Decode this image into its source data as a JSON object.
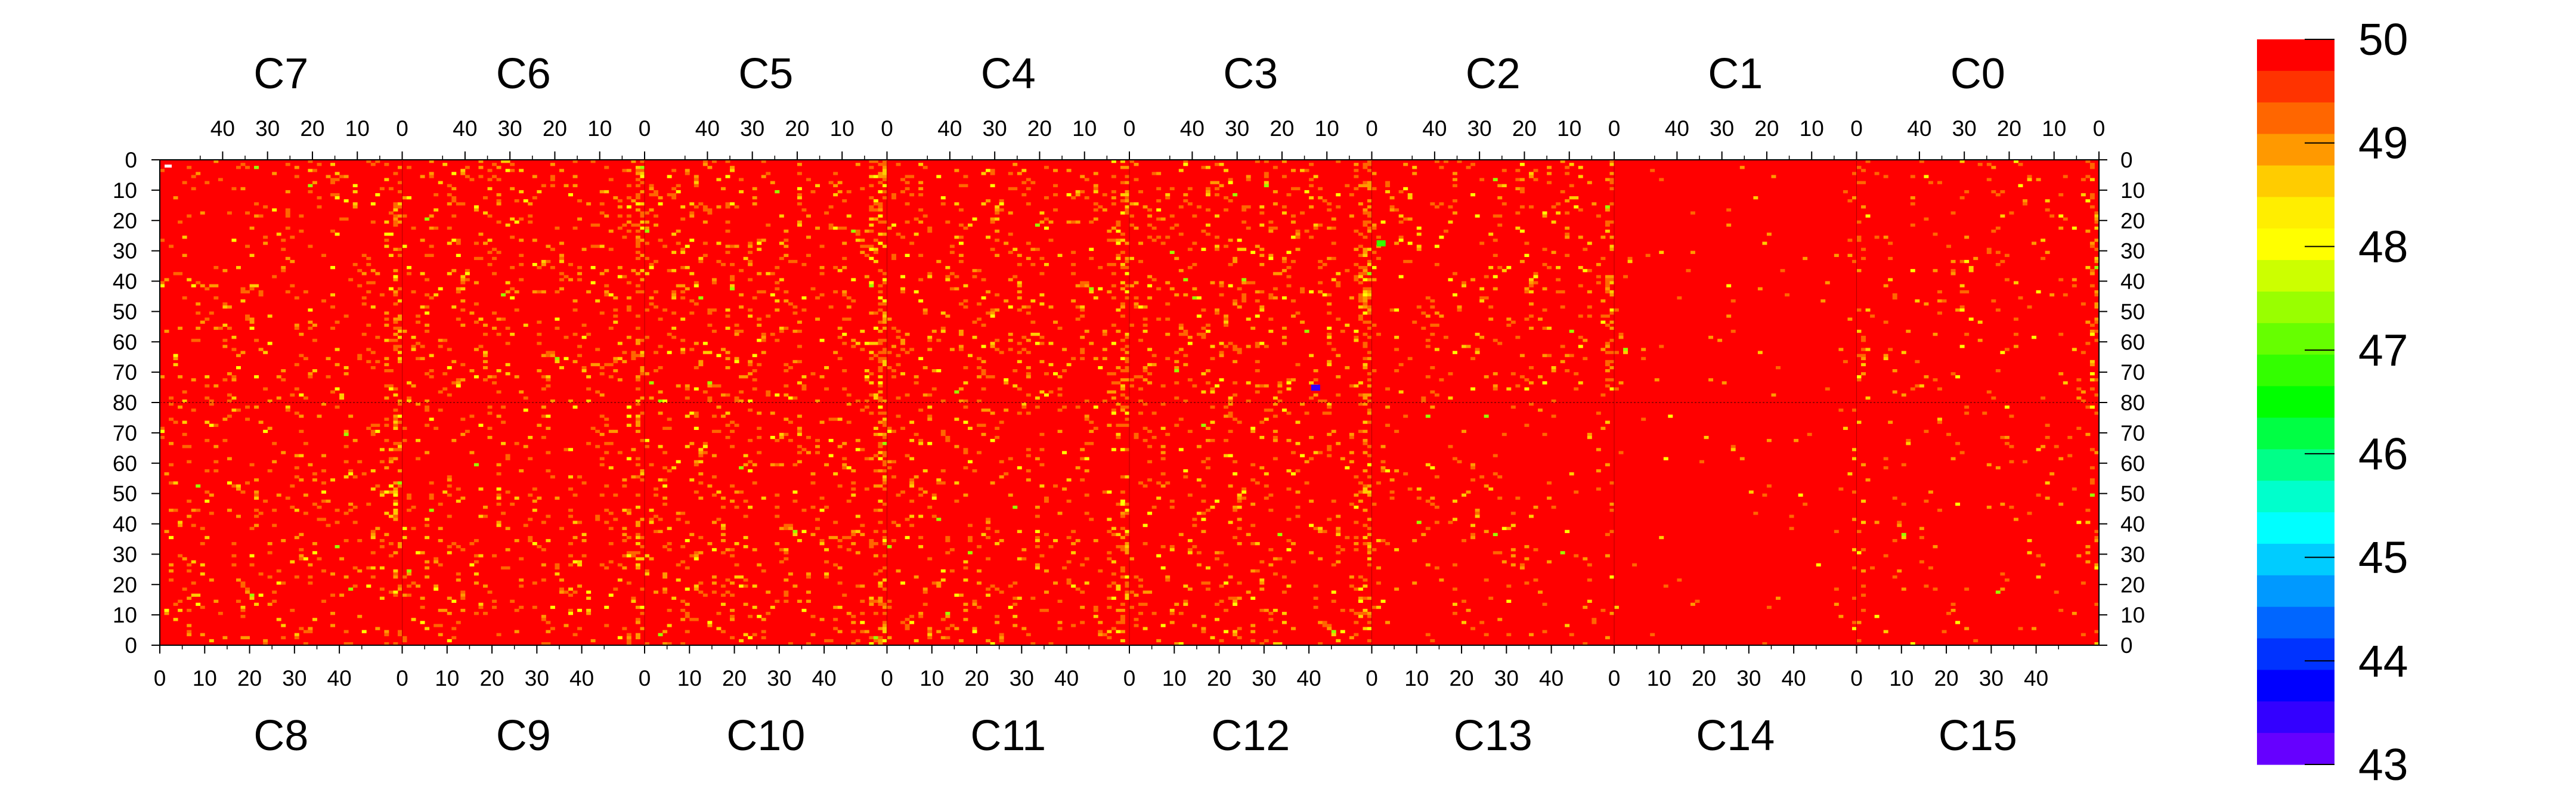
{
  "chart_data": {
    "type": "heatmap",
    "title": "",
    "top_chip_labels": [
      "C7",
      "C6",
      "C5",
      "C4",
      "C3",
      "C2",
      "C1",
      "C0"
    ],
    "bottom_chip_labels": [
      "C8",
      "C9",
      "C10",
      "C11",
      "C12",
      "C13",
      "C14",
      "C15"
    ],
    "top_axis_ticks": [
      "40",
      "30",
      "20",
      "10",
      "0"
    ],
    "bottom_axis_ticks": [
      "0",
      "10",
      "20",
      "30",
      "40"
    ],
    "columns_per_chip": 54,
    "rows_per_half": 80,
    "y_ticks_top_half": [
      "0",
      "10",
      "20",
      "30",
      "40",
      "50",
      "60",
      "70",
      "80"
    ],
    "y_ticks_bottom_half": [
      "70",
      "60",
      "50",
      "40",
      "30",
      "20",
      "10",
      "0"
    ],
    "z_range": [
      43,
      50
    ],
    "colorbar_labels": [
      "50",
      "49",
      "48",
      "47",
      "46",
      "45",
      "44",
      "43"
    ],
    "colorbar_colors": [
      "#ff0000",
      "#ff3300",
      "#ff6600",
      "#ff9900",
      "#ffcc00",
      "#ffee00",
      "#ffff00",
      "#ccff00",
      "#99ff00",
      "#66ff00",
      "#33ff00",
      "#00ff00",
      "#00ff44",
      "#00ff88",
      "#00ffcc",
      "#00ffff",
      "#00ccff",
      "#0099ff",
      "#0066ff",
      "#0033ff",
      "#0000ff",
      "#3300ff",
      "#6600ff"
    ],
    "dominant_value": 50,
    "dominant_color": "#ff0000",
    "noise_colors": [
      "#ff6600",
      "#ff9900",
      "#ffcc00",
      "#ffff00",
      "#99ff00"
    ],
    "chip_noise_density": [
      [
        0.06,
        0.08,
        0.09,
        0.08,
        0.09,
        0.06,
        0.01,
        0.04
      ],
      [
        0.06,
        0.07,
        0.08,
        0.07,
        0.07,
        0.03,
        0.01,
        0.02
      ]
    ],
    "notable_cells": [
      {
        "value": 43,
        "color": "#3300ff"
      },
      {
        "value": 47,
        "color": "#33ff00"
      }
    ]
  }
}
